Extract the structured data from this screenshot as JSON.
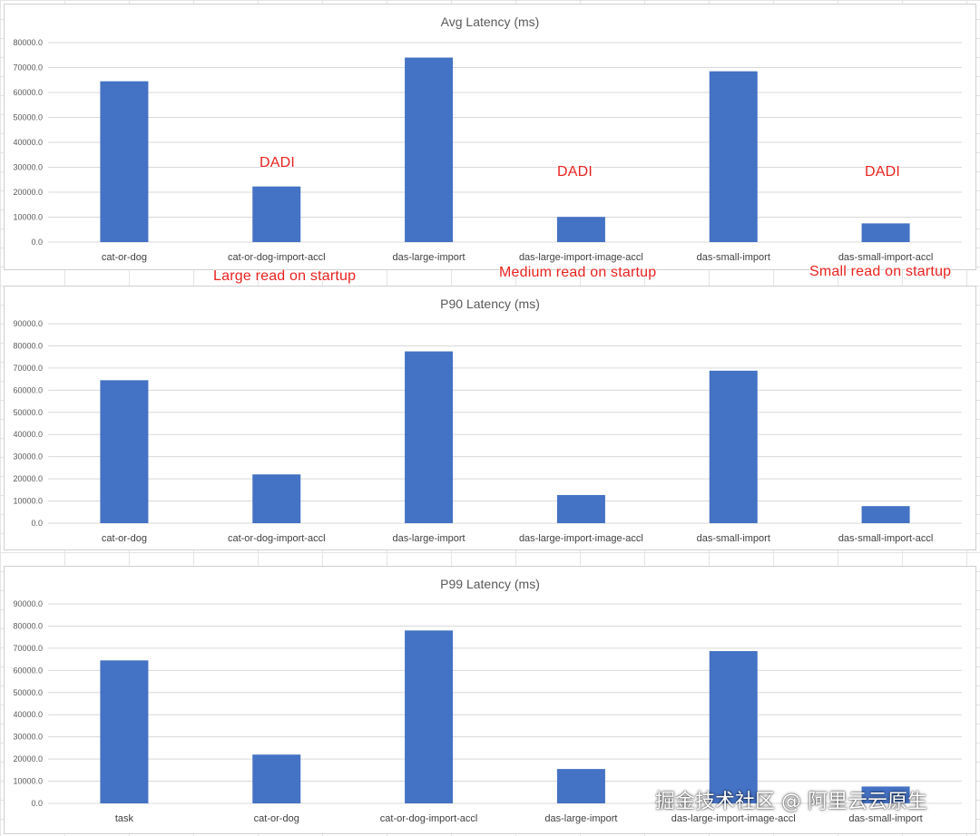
{
  "bar_color": "#4472c4",
  "chart_data": [
    {
      "type": "bar",
      "title": "Avg Latency (ms)",
      "xlabel": "",
      "ylabel": "",
      "ylim": [
        0,
        80000
      ],
      "ytick_step": 10000,
      "categories": [
        "cat-or-dog",
        "cat-or-dog-import-accl",
        "das-large-import",
        "das-large-import-image-accl",
        "das-small-import",
        "das-small-import-accl"
      ],
      "values": [
        64500,
        22300,
        74000,
        10100,
        68500,
        7500
      ]
    },
    {
      "type": "bar",
      "title": "P90 Latency (ms)",
      "xlabel": "",
      "ylabel": "",
      "ylim": [
        0,
        90000
      ],
      "ytick_step": 10000,
      "categories": [
        "cat-or-dog",
        "cat-or-dog-import-accl",
        "das-large-import",
        "das-large-import-image-accl",
        "das-small-import",
        "das-small-import-accl"
      ],
      "values": [
        64500,
        22000,
        77500,
        12700,
        68800,
        7700
      ]
    },
    {
      "type": "bar",
      "title": "P99 Latency (ms)",
      "xlabel": "",
      "ylabel": "",
      "ylim": [
        0,
        90000
      ],
      "ytick_step": 10000,
      "categories": [
        "task",
        "cat-or-dog",
        "cat-or-dog-import-accl",
        "das-large-import",
        "das-large-import-image-accl",
        "das-small-import"
      ],
      "values": [
        64500,
        22000,
        78000,
        15500,
        68700,
        7600
      ]
    }
  ],
  "annotations": {
    "dadi_1": "DADI",
    "dadi_2": "DADI",
    "dadi_3": "DADI",
    "large_read": "Large read on startup",
    "medium_read": "Medium read on startup",
    "small_read": "Small read on startup"
  },
  "watermark": "掘金技术社区 @ 阿里云云原生"
}
